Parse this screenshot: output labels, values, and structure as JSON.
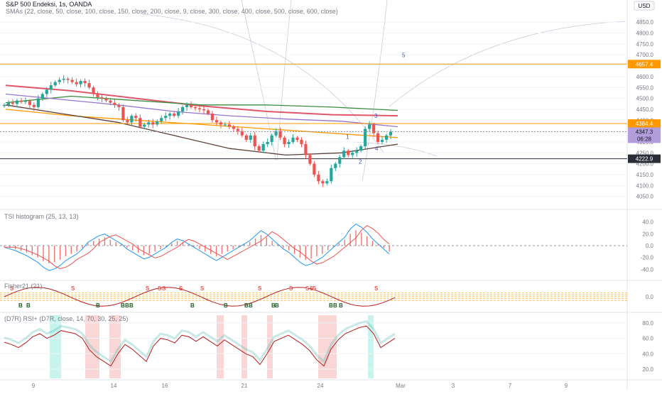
{
  "header": {
    "symbol_line": "S&P 500 Endeksi, 1s, OANDA",
    "sma_line": "SMAs (22, close, 50, close, 100, close, 150, close, 200, close, 9, close, 300, close, 400, close, 500, close, 600, close)",
    "currency": "USD"
  },
  "colors": {
    "up": "#26a69a",
    "down": "#ef5350",
    "orange_line": "#ff9800",
    "purple_line": "#9575cd",
    "red_line": "#e0566a",
    "green_sma": "#388e3c",
    "rsi_up_fill": "#b2f0e6",
    "rsi_down_fill": "#f7c6c6",
    "price_label": "#b39ddb",
    "support_label": "#2a2e39"
  },
  "chart_data": [
    {
      "type": "candlestick",
      "title": "S&P 500 Endeksi, 1s, OANDA",
      "x_tick_labels": [
        "9",
        "14",
        "16",
        "21",
        "24",
        "Mar",
        "3",
        "7",
        "9"
      ],
      "ylim": [
        4000,
        4880
      ],
      "y_ticks": [
        4050,
        4100,
        4150,
        4200,
        4250,
        4300,
        4350,
        4400,
        4450,
        4500,
        4550,
        4600,
        4650,
        4700,
        4750,
        4800,
        4850
      ],
      "closes": [
        4470,
        4480,
        4475,
        4490,
        4484,
        4488,
        4470,
        4460,
        4500,
        4520,
        4540,
        4560,
        4575,
        4585,
        4590,
        4585,
        4575,
        4565,
        4580,
        4570,
        4550,
        4520,
        4505,
        4500,
        4490,
        4480,
        4470,
        4460,
        4400,
        4390,
        4420,
        4410,
        4370,
        4380,
        4390,
        4380,
        4395,
        4410,
        4420,
        4430,
        4420,
        4440,
        4460,
        4470,
        4460,
        4455,
        4450,
        4445,
        4430,
        4400,
        4390,
        4380,
        4380,
        4370,
        4360,
        4350,
        4330,
        4310,
        4330,
        4280,
        4260,
        4290,
        4300,
        4330,
        4350,
        4320,
        4290,
        4300,
        4320,
        4310,
        4290,
        4240,
        4200,
        4150,
        4120,
        4110,
        4120,
        4180,
        4200,
        4230,
        4260,
        4240,
        4250,
        4260,
        4280,
        4360,
        4380,
        4340,
        4300,
        4310,
        4330,
        4347.3
      ],
      "horizontal_levels": [
        {
          "label": "4657.4",
          "value": 4657.4,
          "color": "#ff9800"
        },
        {
          "label": "4384.4",
          "value": 4384.4,
          "color": "#ff9800"
        },
        {
          "label": "4222.9",
          "value": 4222.9,
          "color": "#2a2e39"
        }
      ],
      "last_price": "4347.3",
      "countdown": "06:28",
      "wave_labels": [
        "1",
        "2",
        "3",
        "4",
        "5"
      ],
      "moving_averages": [
        {
          "color": "#e0566a",
          "values": [
            4560,
            4535,
            4500,
            4465,
            4440,
            4425,
            4420
          ]
        },
        {
          "color": "#388e3c",
          "values": [
            4480,
            4510,
            4490,
            4470,
            4470,
            4460,
            4445
          ]
        },
        {
          "color": "#9575cd",
          "values": [
            4520,
            4495,
            4470,
            4440,
            4420,
            4405,
            4395,
            4370
          ]
        },
        {
          "color": "#ff9800",
          "values": [
            4450,
            4420,
            4400,
            4380,
            4360,
            4340,
            4320
          ]
        },
        {
          "color": "#5d4037",
          "values": [
            4470,
            4430,
            4390,
            4330,
            4270,
            4240,
            4250,
            4290
          ]
        }
      ]
    },
    {
      "type": "bar",
      "title": "TSI histogram (25, 13, 13)",
      "ylim": [
        -55,
        55
      ],
      "y_ticks": [
        -40,
        -20,
        0,
        20,
        40
      ],
      "values": [
        -2,
        -4,
        -6,
        -9,
        -12,
        -16,
        -20,
        -26,
        -30,
        -28,
        -24,
        -18,
        -14,
        -10,
        -4,
        4,
        8,
        12,
        14,
        10,
        6,
        2,
        -4,
        -8,
        -12,
        -16,
        -14,
        -10,
        -6,
        -2,
        4,
        8,
        6,
        2,
        -2,
        -6,
        -10,
        -14,
        -18,
        -14,
        -10,
        -6,
        -2,
        2,
        6,
        12,
        18,
        14,
        8,
        2,
        -4,
        -8,
        -14,
        -20,
        -24,
        -22,
        -18,
        -14,
        -8,
        -2,
        4,
        10,
        20,
        26,
        22,
        16,
        8,
        2,
        -4,
        -10
      ]
    },
    {
      "type": "line",
      "title": "Fisher21 (21)",
      "ylim": [
        -3,
        3
      ],
      "y_ticks": [
        0
      ],
      "y_tick_labels": [
        "0.0"
      ],
      "signal_label_sell": "S",
      "signal_label_buy": "B"
    },
    {
      "type": "area",
      "title": "(D7R) RSI+ (D7R, close, 14, 70, 30, 25, 25)",
      "ylim": [
        8,
        90
      ],
      "y_ticks": [
        20,
        40,
        60,
        80
      ],
      "values": [
        55,
        52,
        48,
        54,
        62,
        66,
        60,
        64,
        70,
        68,
        66,
        60,
        45,
        36,
        30,
        24,
        40,
        52,
        46,
        38,
        30,
        50,
        60,
        58,
        54,
        64,
        62,
        56,
        62,
        56,
        50,
        58,
        52,
        46,
        40,
        36,
        26,
        40,
        56,
        60,
        64,
        58,
        52,
        44,
        32,
        24,
        46,
        58,
        66,
        70,
        74,
        76,
        66,
        48,
        54,
        60
      ]
    }
  ],
  "y_axis_labels": {
    "price": [
      "4050.0",
      "4100.0",
      "4150.0",
      "4200.0",
      "4250.0",
      "4300.0",
      "4350.0",
      "4400.0",
      "4450.0",
      "4500.0",
      "4550.0",
      "4600.0",
      "4650.0",
      "4700.0",
      "4750.0",
      "4800.0",
      "4850.0"
    ],
    "tsi": [
      "-40.0",
      "-20.0",
      "0.0",
      "20.0",
      "40.0"
    ],
    "rsi": [
      "20.0",
      "40.0",
      "60.0",
      "80.0"
    ]
  }
}
